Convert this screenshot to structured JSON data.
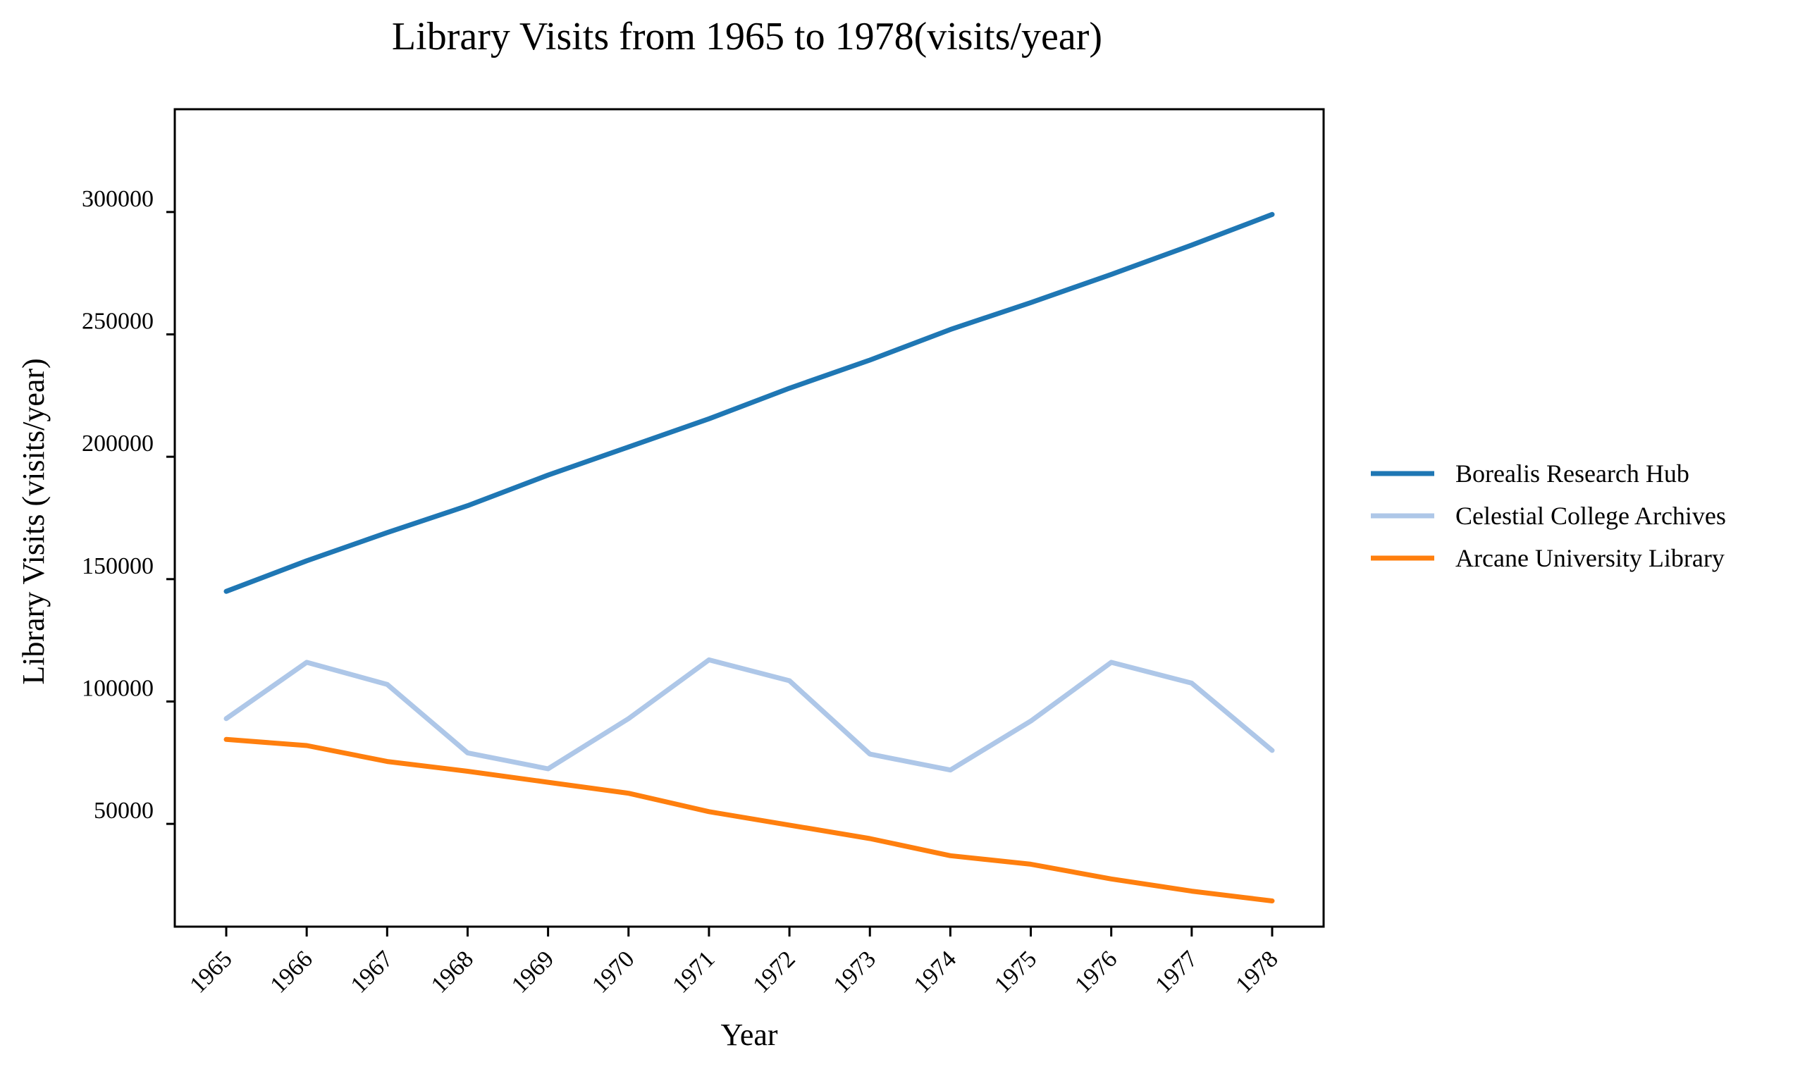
{
  "chart_data": {
    "type": "line",
    "title": "Library Visits from 1965 to 1978(visits/year)",
    "xlabel": "Year",
    "ylabel": "Library Visits (visits/year)",
    "x": [
      "1965",
      "1966",
      "1967",
      "1968",
      "1969",
      "1970",
      "1971",
      "1972",
      "1973",
      "1974",
      "1975",
      "1976",
      "1977",
      "1978"
    ],
    "ylim": [
      8000,
      342000
    ],
    "yticks": [
      50000,
      100000,
      150000,
      200000,
      250000,
      300000
    ],
    "grid": false,
    "legend_position": "right",
    "series": [
      {
        "name": "Borealis Research Hub",
        "color": "#1f77b4",
        "values": [
          145000,
          157500,
          169000,
          180000,
          192500,
          204000,
          215500,
          228000,
          239500,
          252000,
          263000,
          274500,
          286500,
          299000
        ]
      },
      {
        "name": "Celestial College Archives",
        "color": "#aec7e8",
        "values": [
          93000,
          116000,
          107000,
          79000,
          72500,
          93000,
          117000,
          108500,
          78500,
          72000,
          92000,
          116000,
          107500,
          80000
        ]
      },
      {
        "name": "Arcane University Library",
        "color": "#ff7f0e",
        "values": [
          84500,
          82000,
          75500,
          71500,
          67000,
          62500,
          55000,
          49500,
          44000,
          37000,
          33500,
          27500,
          22500,
          18500
        ]
      }
    ]
  }
}
